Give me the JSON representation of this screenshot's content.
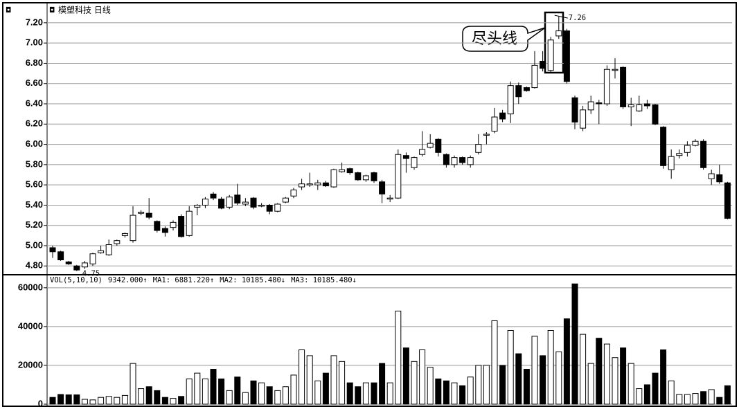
{
  "chart_data": [
    {
      "type": "candlestick",
      "title": "模塑科技 日线",
      "open": [
        4.98,
        4.94,
        4.84,
        4.8,
        4.79,
        4.82,
        4.93,
        4.91,
        5.02,
        5.1,
        5.05,
        5.32,
        5.32,
        5.24,
        5.17,
        5.18,
        5.29,
        5.1,
        5.38,
        5.4,
        5.51,
        5.46,
        5.38,
        5.5,
        5.41,
        5.47,
        5.39,
        5.4,
        5.34,
        5.43,
        5.49,
        5.58,
        5.6,
        5.6,
        5.62,
        5.58,
        5.73,
        5.76,
        5.72,
        5.65,
        5.72,
        5.63,
        5.46,
        5.47,
        5.89,
        5.77,
        5.9,
        5.97,
        6.05,
        5.9,
        5.8,
        5.87,
        5.8,
        5.92,
        6.09,
        6.13,
        6.31,
        6.3,
        6.58,
        6.56,
        6.56,
        6.82,
        6.73,
        7.07,
        7.12,
        6.46,
        6.16,
        6.34,
        6.41,
        6.4,
        6.73,
        6.76,
        6.37,
        6.33,
        6.4,
        6.39,
        6.17,
        5.75,
        5.89,
        5.92,
        5.99,
        6.03,
        5.66,
        5.7,
        5.62
      ],
      "high": [
        5.0,
        4.95,
        4.85,
        4.81,
        4.85,
        4.93,
        5.0,
        5.06,
        5.06,
        5.13,
        5.39,
        5.35,
        5.47,
        5.25,
        5.19,
        5.25,
        5.31,
        5.39,
        5.41,
        5.48,
        5.53,
        5.48,
        5.5,
        5.61,
        5.47,
        5.48,
        5.42,
        5.41,
        5.42,
        5.48,
        5.57,
        5.66,
        5.72,
        5.65,
        5.64,
        5.76,
        5.82,
        5.77,
        5.73,
        5.7,
        5.73,
        5.65,
        5.5,
        5.95,
        5.92,
        5.88,
        6.13,
        6.1,
        6.06,
        5.91,
        5.89,
        5.88,
        5.89,
        6.1,
        6.12,
        6.36,
        6.34,
        6.62,
        6.61,
        6.57,
        6.92,
        6.92,
        7.06,
        7.26,
        7.14,
        6.48,
        6.38,
        6.48,
        6.44,
        6.78,
        6.85,
        6.77,
        6.46,
        6.48,
        6.44,
        6.4,
        6.18,
        5.95,
        5.95,
        6.03,
        6.05,
        6.05,
        5.75,
        5.8,
        5.63
      ],
      "low": [
        4.88,
        4.85,
        4.81,
        4.75,
        4.77,
        4.8,
        4.92,
        4.9,
        5.0,
        5.08,
        5.03,
        5.3,
        5.26,
        5.13,
        5.09,
        5.15,
        5.08,
        5.09,
        5.3,
        5.37,
        5.45,
        5.36,
        5.36,
        5.4,
        5.39,
        5.36,
        5.38,
        5.31,
        5.33,
        5.42,
        5.47,
        5.55,
        5.58,
        5.55,
        5.58,
        5.57,
        5.72,
        5.7,
        5.64,
        5.63,
        5.62,
        5.42,
        5.43,
        5.46,
        5.72,
        5.75,
        5.88,
        5.96,
        5.88,
        5.77,
        5.77,
        5.8,
        5.77,
        5.9,
        6.0,
        6.11,
        6.22,
        6.21,
        6.4,
        6.52,
        6.55,
        6.72,
        6.7,
        7.04,
        6.6,
        6.15,
        6.13,
        6.3,
        6.2,
        6.38,
        6.65,
        6.35,
        6.18,
        6.32,
        6.35,
        6.19,
        5.76,
        5.66,
        5.86,
        5.88,
        5.98,
        5.75,
        5.6,
        5.61,
        5.26
      ],
      "close": [
        4.94,
        4.86,
        4.82,
        4.76,
        4.83,
        4.92,
        4.95,
        5.01,
        5.05,
        5.12,
        5.3,
        5.33,
        5.28,
        5.15,
        5.13,
        5.23,
        5.09,
        5.34,
        5.4,
        5.46,
        5.47,
        5.37,
        5.48,
        5.42,
        5.43,
        5.38,
        5.4,
        5.34,
        5.41,
        5.47,
        5.55,
        5.61,
        5.61,
        5.62,
        5.59,
        5.75,
        5.75,
        5.72,
        5.65,
        5.69,
        5.64,
        5.51,
        5.47,
        5.9,
        5.86,
        5.87,
        5.95,
        6.01,
        5.92,
        5.8,
        5.87,
        5.82,
        5.87,
        6.0,
        6.1,
        6.27,
        6.25,
        6.58,
        6.47,
        6.53,
        6.78,
        6.75,
        7.03,
        7.12,
        6.62,
        6.22,
        6.34,
        6.42,
        6.4,
        6.74,
        6.74,
        6.37,
        6.39,
        6.39,
        6.38,
        6.2,
        5.79,
        5.88,
        5.91,
        5.99,
        6.03,
        5.77,
        5.71,
        5.63,
        5.27
      ],
      "ylim": [
        4.72,
        7.37
      ],
      "yticks": [
        {
          "value": 4.8,
          "label": "4.80"
        },
        {
          "value": 5.0,
          "label": "5.00"
        },
        {
          "value": 5.2,
          "label": "5.20"
        },
        {
          "value": 5.4,
          "label": "5.40"
        },
        {
          "value": 5.6,
          "label": "5.60"
        },
        {
          "value": 5.8,
          "label": "5.80"
        },
        {
          "value": 6.0,
          "label": "6.00"
        },
        {
          "value": 6.2,
          "label": "6.20"
        },
        {
          "value": 6.4,
          "label": "6.40"
        },
        {
          "value": 6.6,
          "label": "6.60"
        },
        {
          "value": 6.8,
          "label": "6.80"
        },
        {
          "value": 7.0,
          "label": "7.00"
        },
        {
          "value": 7.2,
          "label": "7.20"
        }
      ],
      "high_label": 7.26,
      "low_label": 4.75,
      "annotation": "尽头线",
      "grid": true,
      "up_color": "#ffffff",
      "down_color": "#000000"
    },
    {
      "type": "bar",
      "legend_text": [
        "VOL(5,10,10)",
        "9342.000↑",
        "MA1: 6881.220↑",
        "MA2: 10185.480↓",
        "MA3: 10185.480↓"
      ],
      "values": [
        3500,
        5000,
        4800,
        4800,
        2500,
        2200,
        3500,
        4000,
        3500,
        4500,
        21000,
        8000,
        9000,
        7000,
        3500,
        3000,
        4000,
        13000,
        16000,
        13000,
        18000,
        13000,
        7000,
        14000,
        6000,
        12000,
        11000,
        9000,
        7000,
        9000,
        15000,
        28000,
        25000,
        12000,
        16000,
        25000,
        22000,
        11000,
        9000,
        11000,
        11000,
        21000,
        11000,
        48000,
        29000,
        22000,
        28000,
        19000,
        13000,
        12000,
        11000,
        9500,
        14000,
        20000,
        20000,
        43000,
        20000,
        38000,
        26000,
        18000,
        35000,
        25000,
        38000,
        27000,
        44000,
        62000,
        36000,
        21000,
        34000,
        31000,
        24000,
        29000,
        21000,
        8000,
        10000,
        16000,
        28000,
        12000,
        5000,
        5000,
        5500,
        6500,
        7500,
        3500,
        9500
      ],
      "ylim": [
        0,
        66000
      ],
      "yticks": [
        0,
        20000,
        40000,
        60000
      ],
      "grid": true
    }
  ]
}
